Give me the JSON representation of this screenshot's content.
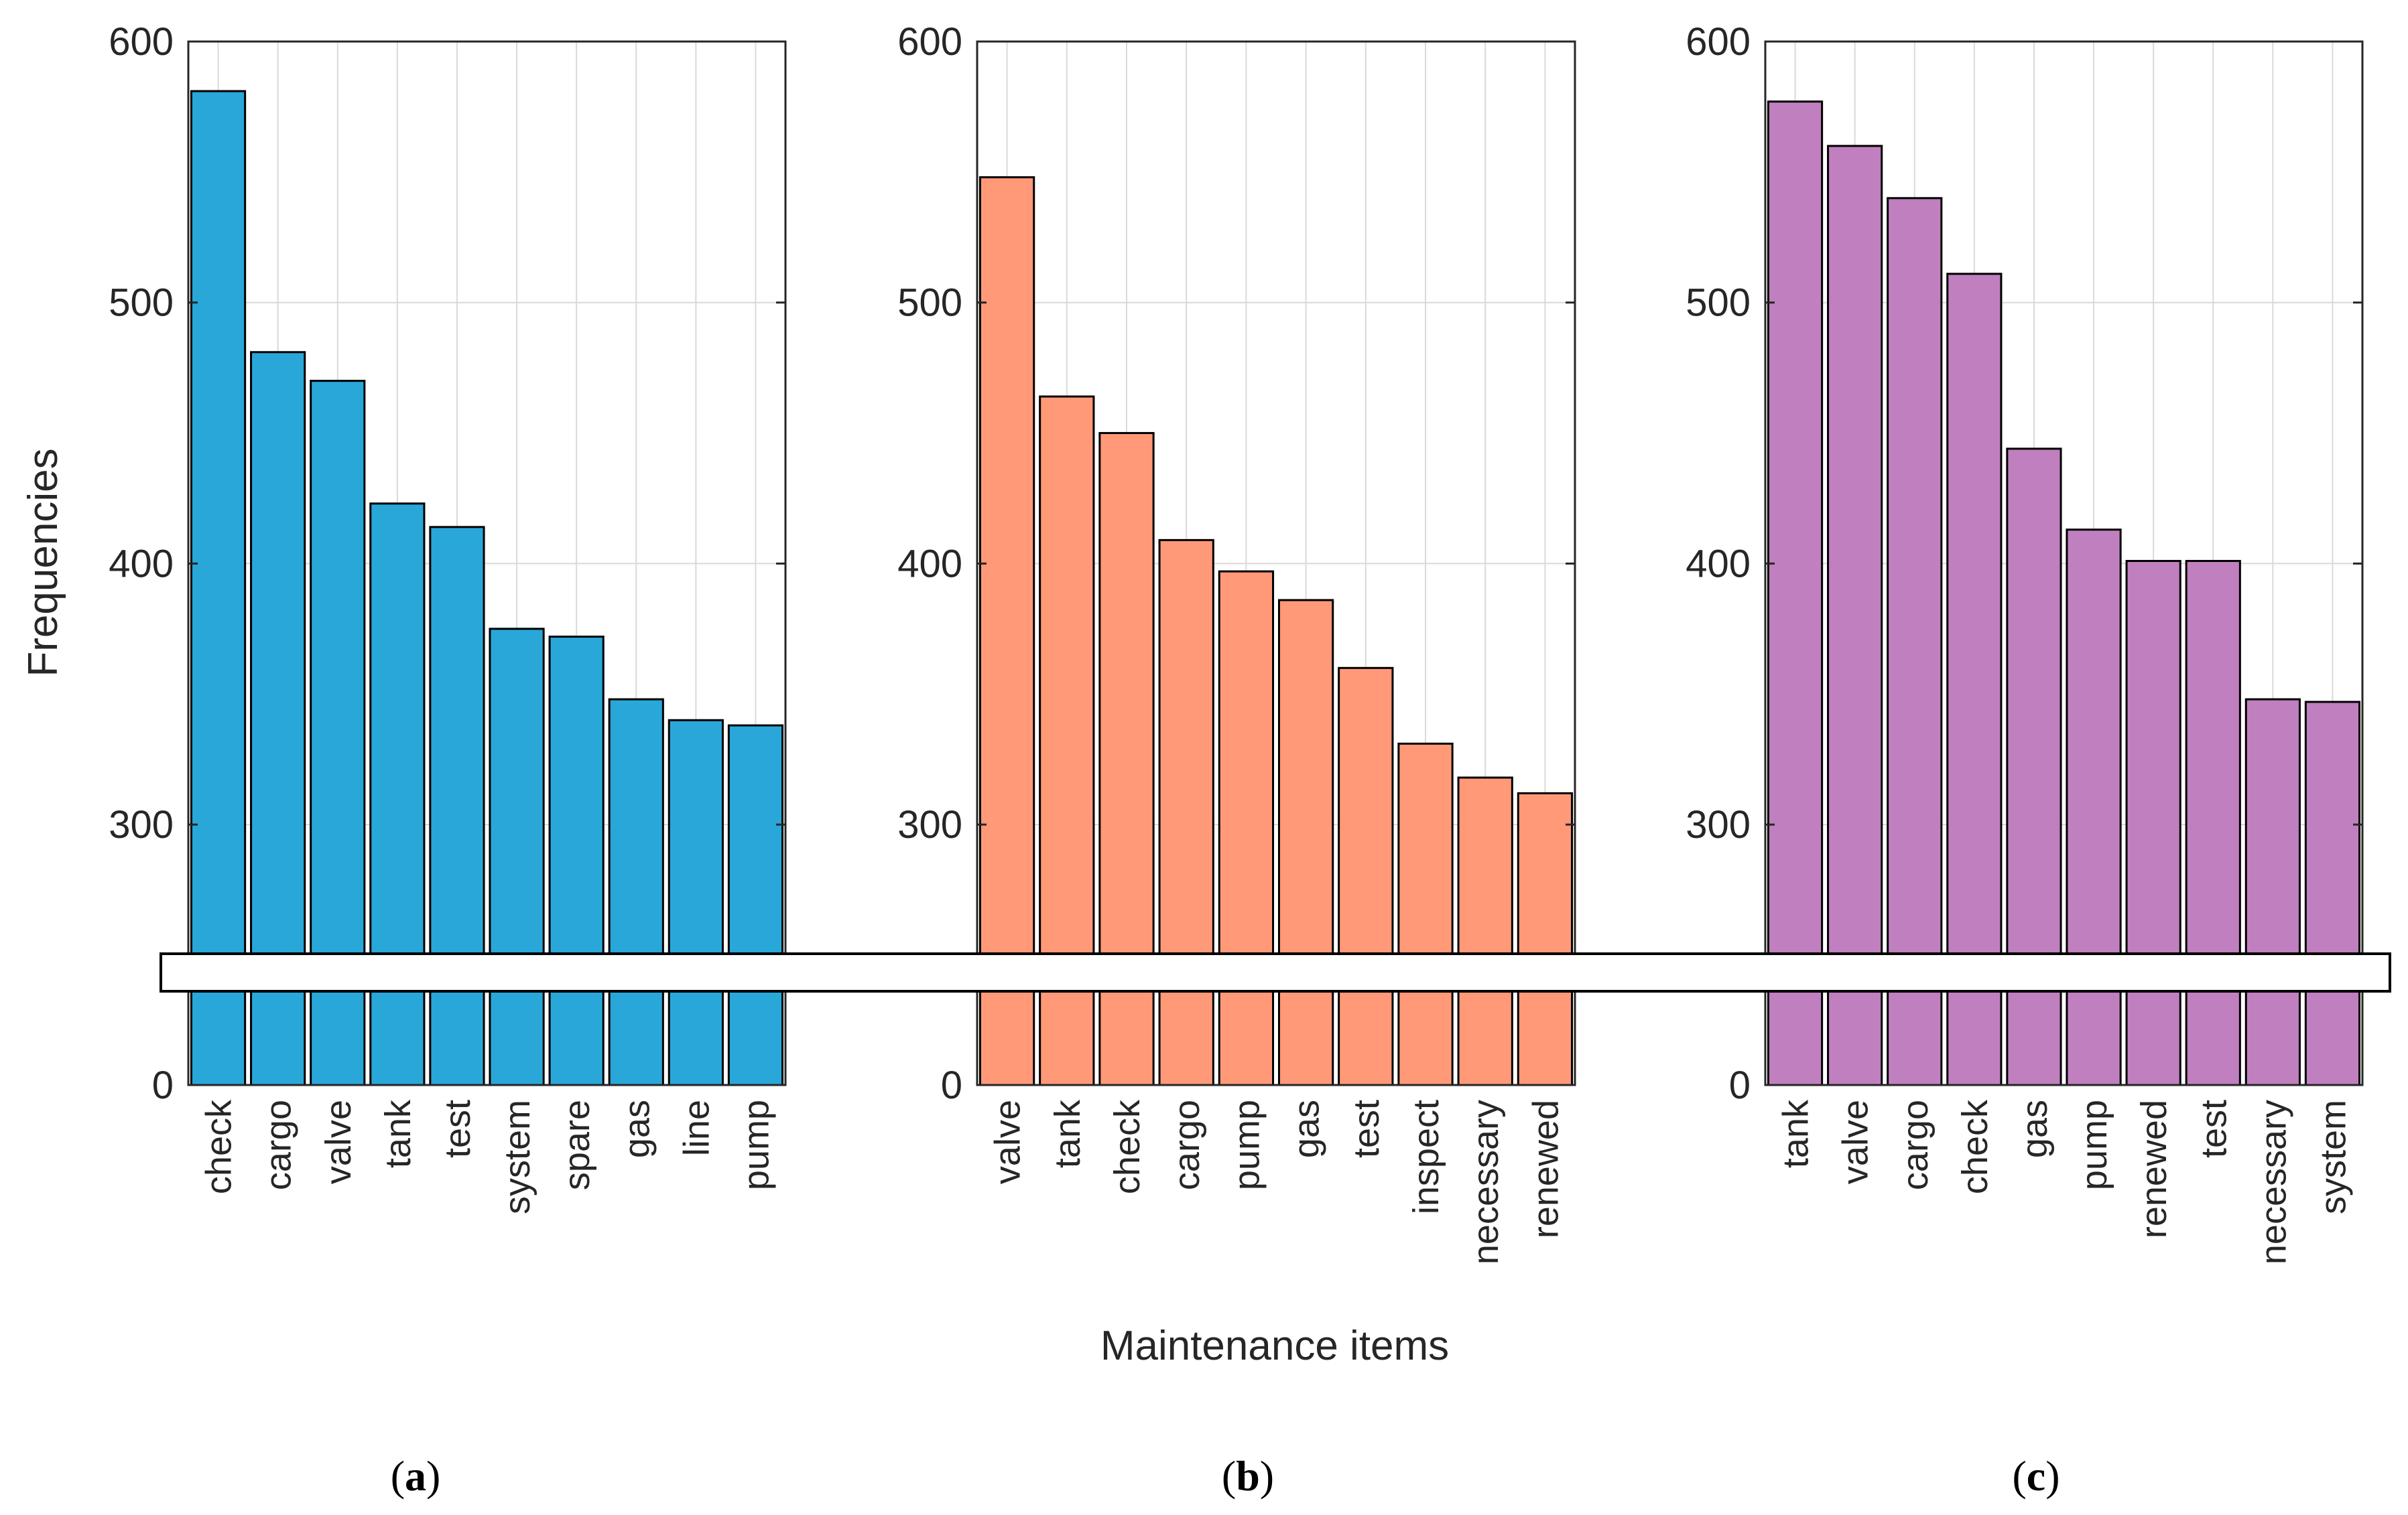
{
  "chart_data": [
    {
      "type": "bar",
      "panel_label": "a",
      "color": "#29A7D9",
      "categories": [
        "check",
        "cargo",
        "valve",
        "tank",
        "test",
        "system",
        "spare",
        "gas",
        "line",
        "pump"
      ],
      "values": [
        581,
        481,
        470,
        423,
        414,
        375,
        372,
        348,
        340,
        338
      ],
      "ylim": [
        0,
        600
      ],
      "yticks": [
        "0",
        "300",
        "400",
        "500",
        "600"
      ],
      "axis_break": "0 to 250 compressed",
      "grid": true
    },
    {
      "type": "bar",
      "panel_label": "b",
      "color": "#FF9978",
      "categories": [
        "valve",
        "tank",
        "check",
        "cargo",
        "pump",
        "gas",
        "test",
        "inspect",
        "necessary",
        "renewed"
      ],
      "values": [
        548,
        464,
        450,
        409,
        397,
        386,
        360,
        331,
        318,
        312
      ],
      "ylim": [
        0,
        600
      ],
      "yticks": [
        "0",
        "300",
        "400",
        "500",
        "600"
      ],
      "axis_break": "0 to 250 compressed",
      "grid": true
    },
    {
      "type": "bar",
      "panel_label": "c",
      "color": "#C07FBE",
      "categories": [
        "tank",
        "valve",
        "cargo",
        "check",
        "gas",
        "pump",
        "renewed",
        "test",
        "necessary",
        "system"
      ],
      "values": [
        577,
        560,
        540,
        511,
        444,
        413,
        401,
        401,
        348,
        347
      ],
      "ylim": [
        0,
        600
      ],
      "yticks": [
        "0",
        "300",
        "400",
        "500",
        "600"
      ],
      "axis_break": "0 to 250 compressed",
      "grid": true
    }
  ],
  "ylabel": "Frequencies",
  "xlabel": "Maintenance items",
  "colors": {
    "edge": "#000000",
    "grid": "#d9d9d9",
    "axis": "#262626"
  }
}
